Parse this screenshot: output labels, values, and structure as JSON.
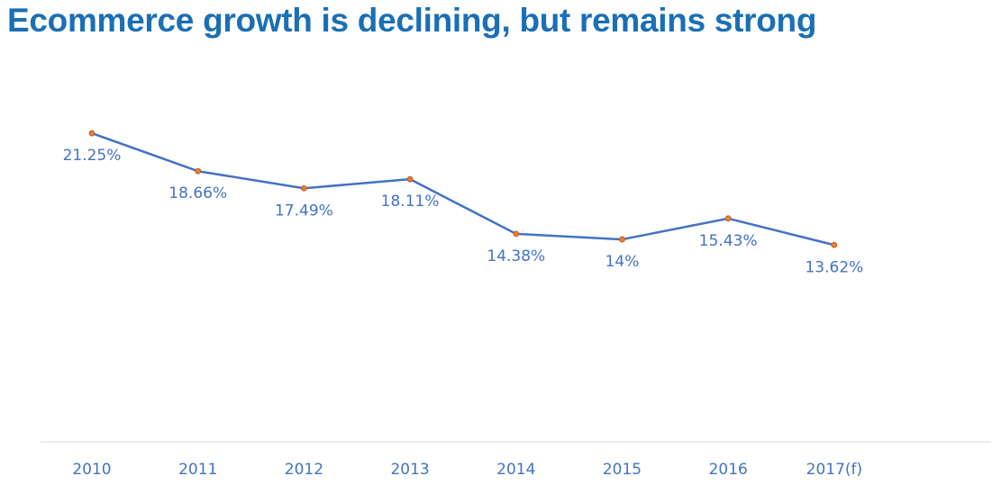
{
  "chart_data": {
    "type": "line",
    "title": "Ecommerce growth is declining, but remains strong",
    "xlabel": "",
    "ylabel": "",
    "categories": [
      "2010",
      "2011",
      "2012",
      "2013",
      "2014",
      "2015",
      "2016",
      "2017(f)"
    ],
    "series": [
      {
        "name": "Ecommerce growth",
        "values": [
          21.25,
          18.66,
          17.49,
          18.11,
          14.38,
          14,
          15.43,
          13.62
        ],
        "labels": [
          "21.25%",
          "18.66%",
          "17.49%",
          "18.11%",
          "14.38%",
          "14%",
          "15.43%",
          "13.62%"
        ]
      }
    ],
    "ylim": [
      0,
      25
    ],
    "grid": false,
    "legend": "none",
    "colors": {
      "line": "#4472c4",
      "marker": "#ed7d31",
      "title": "#1a6fb5",
      "axis": "#d9d9d9"
    }
  }
}
